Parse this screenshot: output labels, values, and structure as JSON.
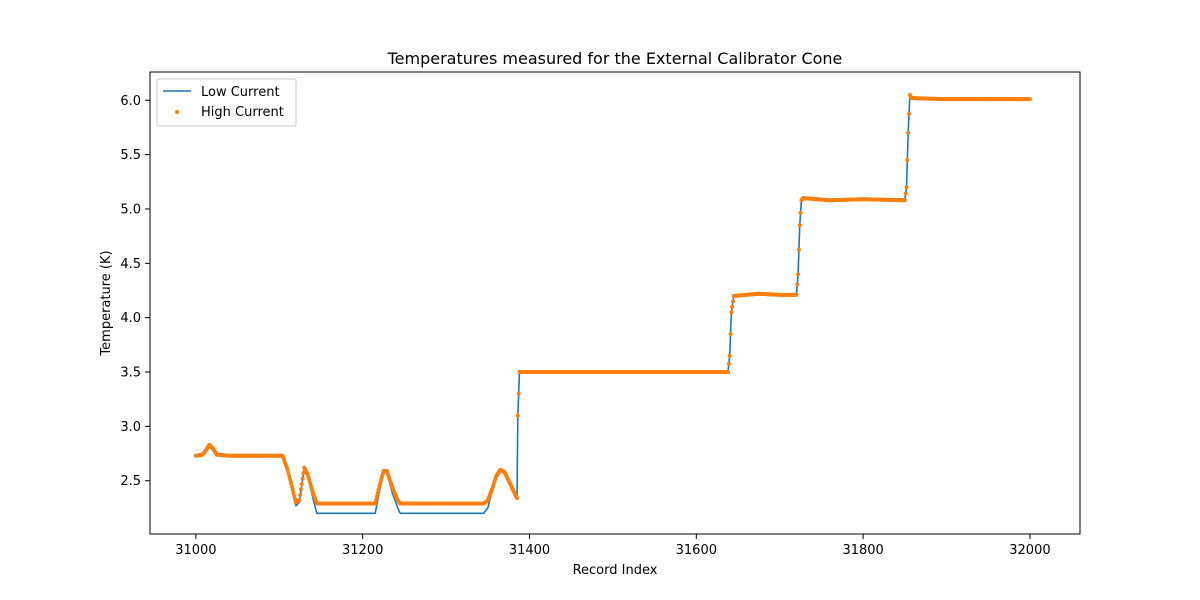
{
  "chart_data": {
    "type": "line",
    "title": "Temperatures measured for the External Calibrator Cone",
    "xlabel": "Record Index",
    "ylabel": "Temperature (K)",
    "xlim": [
      30945,
      32060
    ],
    "ylim": [
      2.01,
      6.26
    ],
    "xticks": [
      31000,
      31200,
      31400,
      31600,
      31800,
      32000
    ],
    "yticks": [
      2.5,
      3.0,
      3.5,
      4.0,
      4.5,
      5.0,
      5.5,
      6.0
    ],
    "xtick_labels": [
      "31000",
      "31200",
      "31400",
      "31600",
      "31800",
      "32000"
    ],
    "ytick_labels": [
      "2.5",
      "3.0",
      "3.5",
      "4.0",
      "4.5",
      "5.0",
      "5.5",
      "6.0"
    ],
    "grid": false,
    "legend_position": "top-left",
    "series": [
      {
        "name": "Low Current",
        "style": "line",
        "color": "#1f77b4",
        "points": [
          [
            31000,
            2.73
          ],
          [
            31008,
            2.74
          ],
          [
            31012,
            2.78
          ],
          [
            31016,
            2.83
          ],
          [
            31020,
            2.8
          ],
          [
            31025,
            2.74
          ],
          [
            31040,
            2.73
          ],
          [
            31104,
            2.73
          ],
          [
            31110,
            2.6
          ],
          [
            31115,
            2.42
          ],
          [
            31120,
            2.27
          ],
          [
            31124,
            2.3
          ],
          [
            31130,
            2.62
          ],
          [
            31134,
            2.55
          ],
          [
            31140,
            2.35
          ],
          [
            31145,
            2.2
          ],
          [
            31210,
            2.2
          ],
          [
            31215,
            2.2
          ],
          [
            31220,
            2.4
          ],
          [
            31225,
            2.58
          ],
          [
            31229,
            2.58
          ],
          [
            31235,
            2.4
          ],
          [
            31242,
            2.25
          ],
          [
            31245,
            2.2
          ],
          [
            31345,
            2.2
          ],
          [
            31350,
            2.25
          ],
          [
            31355,
            2.4
          ],
          [
            31360,
            2.53
          ],
          [
            31365,
            2.6
          ],
          [
            31370,
            2.58
          ],
          [
            31375,
            2.5
          ],
          [
            31380,
            2.4
          ],
          [
            31385,
            2.34
          ],
          [
            31386,
            3.1
          ],
          [
            31388,
            3.5
          ],
          [
            31600,
            3.5
          ],
          [
            31638,
            3.5
          ],
          [
            31640,
            3.65
          ],
          [
            31642,
            4.05
          ],
          [
            31645,
            4.2
          ],
          [
            31675,
            4.22
          ],
          [
            31700,
            4.21
          ],
          [
            31720,
            4.21
          ],
          [
            31722,
            4.4
          ],
          [
            31724,
            4.85
          ],
          [
            31726,
            5.08
          ],
          [
            31728,
            5.1
          ],
          [
            31760,
            5.08
          ],
          [
            31800,
            5.09
          ],
          [
            31850,
            5.08
          ],
          [
            31852,
            5.2
          ],
          [
            31854,
            5.7
          ],
          [
            31856,
            6.05
          ],
          [
            31858,
            6.02
          ],
          [
            31900,
            6.01
          ],
          [
            31950,
            6.02
          ],
          [
            32000,
            6.01
          ]
        ]
      },
      {
        "name": "High Current",
        "style": "scatter",
        "color": "#ff7f0e",
        "points": [
          [
            31000,
            2.73
          ],
          [
            31008,
            2.74
          ],
          [
            31012,
            2.78
          ],
          [
            31016,
            2.83
          ],
          [
            31020,
            2.8
          ],
          [
            31025,
            2.74
          ],
          [
            31040,
            2.73
          ],
          [
            31104,
            2.73
          ],
          [
            31110,
            2.6
          ],
          [
            31115,
            2.45
          ],
          [
            31120,
            2.3
          ],
          [
            31124,
            2.32
          ],
          [
            31130,
            2.62
          ],
          [
            31134,
            2.56
          ],
          [
            31140,
            2.4
          ],
          [
            31145,
            2.29
          ],
          [
            31150,
            2.29
          ],
          [
            31210,
            2.29
          ],
          [
            31215,
            2.29
          ],
          [
            31220,
            2.45
          ],
          [
            31225,
            2.59
          ],
          [
            31229,
            2.59
          ],
          [
            31235,
            2.45
          ],
          [
            31242,
            2.32
          ],
          [
            31245,
            2.29
          ],
          [
            31345,
            2.29
          ],
          [
            31350,
            2.32
          ],
          [
            31355,
            2.42
          ],
          [
            31360,
            2.54
          ],
          [
            31365,
            2.6
          ],
          [
            31370,
            2.58
          ],
          [
            31375,
            2.5
          ],
          [
            31380,
            2.42
          ],
          [
            31385,
            2.34
          ],
          [
            31386,
            3.1
          ],
          [
            31388,
            3.5
          ],
          [
            31600,
            3.5
          ],
          [
            31638,
            3.5
          ],
          [
            31640,
            3.65
          ],
          [
            31642,
            4.05
          ],
          [
            31645,
            4.2
          ],
          [
            31675,
            4.22
          ],
          [
            31700,
            4.21
          ],
          [
            31720,
            4.21
          ],
          [
            31722,
            4.4
          ],
          [
            31724,
            4.85
          ],
          [
            31726,
            5.08
          ],
          [
            31728,
            5.1
          ],
          [
            31760,
            5.08
          ],
          [
            31800,
            5.09
          ],
          [
            31850,
            5.08
          ],
          [
            31852,
            5.2
          ],
          [
            31854,
            5.7
          ],
          [
            31856,
            6.05
          ],
          [
            31858,
            6.02
          ],
          [
            31900,
            6.01
          ],
          [
            31950,
            6.01
          ],
          [
            32000,
            6.01
          ]
        ]
      }
    ]
  }
}
